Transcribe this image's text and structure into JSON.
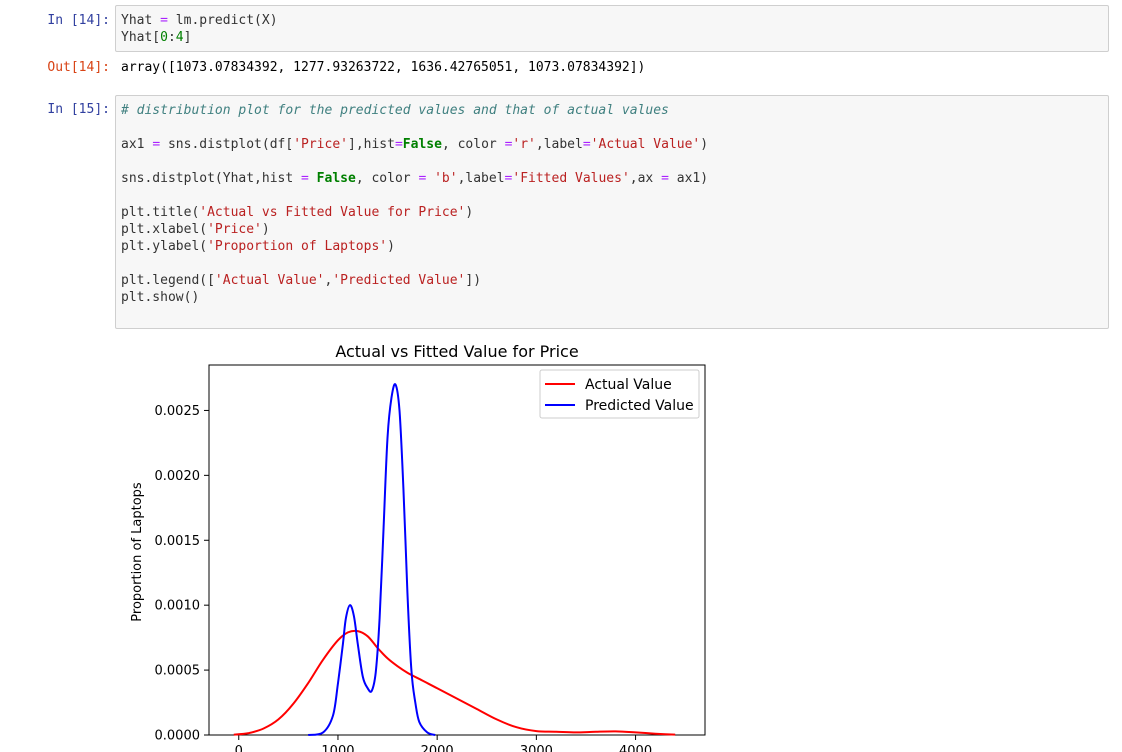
{
  "cells": {
    "cell14": {
      "in_prompt": "In [14]:",
      "out_prompt": "Out[14]:",
      "output": "array([1073.07834392, 1277.93263722, 1636.42765051, 1073.07834392])"
    },
    "cell15": {
      "in_prompt": "In [15]:",
      "comment": "# distribution plot for the predicted values and that of actual values"
    }
  },
  "chart_data": {
    "type": "line",
    "title": "Actual vs Fitted Value for Price",
    "xlabel": "",
    "ylabel": "Proportion of Laptops",
    "xlim": [
      -300,
      4700
    ],
    "ylim": [
      0,
      0.00285
    ],
    "x_ticks": [
      0,
      1000,
      2000,
      3000,
      4000
    ],
    "y_ticks": [
      "0.0000",
      "0.0005",
      "0.0010",
      "0.0015",
      "0.0020",
      "0.0025"
    ],
    "legend_position": "top-right",
    "grid": false,
    "series": [
      {
        "name": "Actual Value",
        "color": "#ff0000",
        "points": [
          [
            -50,
            3e-06
          ],
          [
            100,
            1.5e-05
          ],
          [
            250,
            5e-05
          ],
          [
            400,
            0.00012
          ],
          [
            550,
            0.00024
          ],
          [
            700,
            0.0004
          ],
          [
            850,
            0.00058
          ],
          [
            1000,
            0.00073
          ],
          [
            1100,
            0.00079
          ],
          [
            1200,
            0.0008
          ],
          [
            1300,
            0.00076
          ],
          [
            1400,
            0.00067
          ],
          [
            1500,
            0.00059
          ],
          [
            1600,
            0.00053
          ],
          [
            1700,
            0.00048
          ],
          [
            1850,
            0.00042
          ],
          [
            2000,
            0.00036
          ],
          [
            2200,
            0.00028
          ],
          [
            2400,
            0.0002
          ],
          [
            2600,
            0.00012
          ],
          [
            2800,
            6e-05
          ],
          [
            3000,
            3e-05
          ],
          [
            3200,
            2.5e-05
          ],
          [
            3400,
            2e-05
          ],
          [
            3600,
            2.5e-05
          ],
          [
            3800,
            2.8e-05
          ],
          [
            4000,
            2e-05
          ],
          [
            4200,
            1e-05
          ],
          [
            4400,
            3e-06
          ]
        ]
      },
      {
        "name": "Predicted Value",
        "color": "#0000ff",
        "points": [
          [
            700,
            0.0
          ],
          [
            850,
            2e-05
          ],
          [
            950,
            0.00015
          ],
          [
            1000,
            0.0004
          ],
          [
            1050,
            0.0007
          ],
          [
            1080,
            0.0009
          ],
          [
            1120,
            0.001
          ],
          [
            1160,
            0.00092
          ],
          [
            1200,
            0.0007
          ],
          [
            1250,
            0.00045
          ],
          [
            1300,
            0.00036
          ],
          [
            1340,
            0.00034
          ],
          [
            1380,
            0.00048
          ],
          [
            1420,
            0.0009
          ],
          [
            1460,
            0.0016
          ],
          [
            1500,
            0.0023
          ],
          [
            1540,
            0.0026
          ],
          [
            1580,
            0.0027
          ],
          [
            1620,
            0.0025
          ],
          [
            1660,
            0.0019
          ],
          [
            1700,
            0.0011
          ],
          [
            1740,
            0.0005
          ],
          [
            1780,
            0.00025
          ],
          [
            1820,
            0.0001
          ],
          [
            1900,
            2e-05
          ],
          [
            1980,
            0.0
          ]
        ]
      }
    ]
  }
}
